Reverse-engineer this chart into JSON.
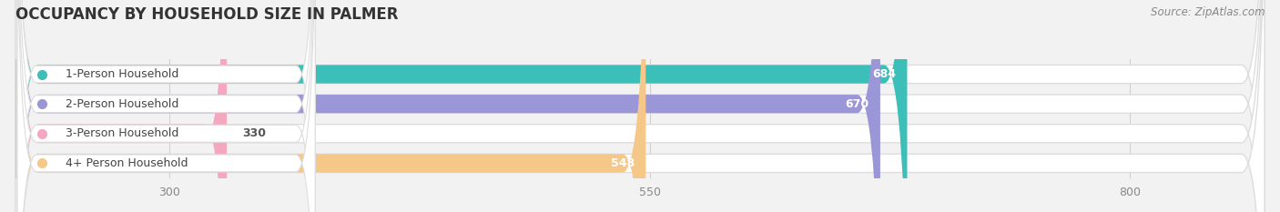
{
  "title": "OCCUPANCY BY HOUSEHOLD SIZE IN PALMER",
  "source": "Source: ZipAtlas.com",
  "categories": [
    "1-Person Household",
    "2-Person Household",
    "3-Person Household",
    "4+ Person Household"
  ],
  "values": [
    684,
    670,
    330,
    548
  ],
  "bar_colors": [
    "#3bbfb8",
    "#9b96d8",
    "#f4a8c0",
    "#f5c88a"
  ],
  "background_color": "#f2f2f2",
  "bar_bg_color": "#ffffff",
  "bar_border_color": "#dddddd",
  "xlim_min": 220,
  "xlim_max": 870,
  "xticks": [
    300,
    550,
    800
  ],
  "title_fontsize": 12,
  "source_fontsize": 8.5,
  "bar_label_fontsize": 9,
  "cat_label_fontsize": 9,
  "tick_fontsize": 9,
  "bar_height": 0.62,
  "figsize": [
    14.06,
    2.33
  ],
  "dpi": 100
}
